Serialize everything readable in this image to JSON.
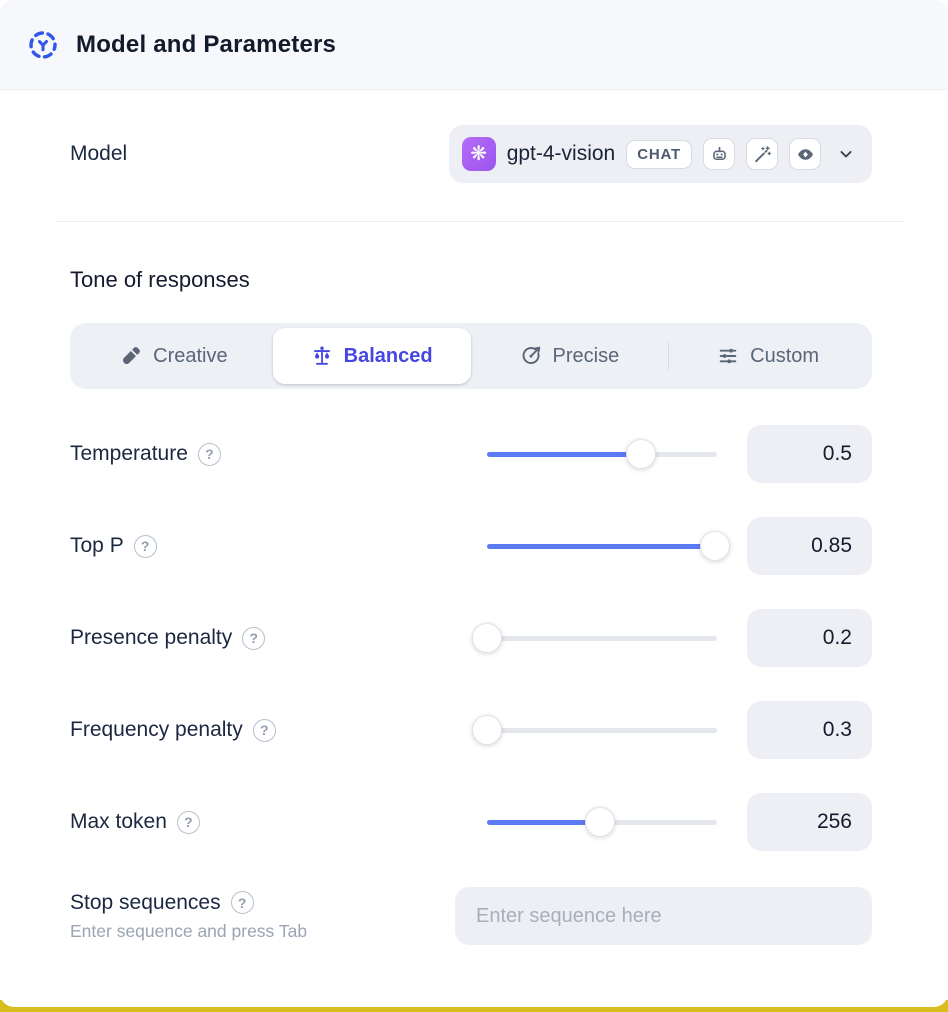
{
  "header": {
    "title": "Model and Parameters",
    "icon": "model-hub-icon"
  },
  "model": {
    "label": "Model",
    "selected": "gpt-4-vision",
    "badge": "CHAT",
    "logo_icon": "openai-logo",
    "logo_glyph": "❋",
    "capability_icons": [
      "robot-icon",
      "magic-wand-icon",
      "vision-eye-icon"
    ]
  },
  "tone": {
    "heading": "Tone of responses",
    "tabs": [
      {
        "label": "Creative",
        "icon": "paintbrush-icon",
        "selected": false
      },
      {
        "label": "Balanced",
        "icon": "balance-scale-icon",
        "selected": true
      },
      {
        "label": "Precise",
        "icon": "target-arrow-icon",
        "selected": false
      },
      {
        "label": "Custom",
        "icon": "sliders-icon",
        "selected": false
      }
    ]
  },
  "parameters": [
    {
      "label": "Temperature",
      "value": "0.5",
      "slider_fill_pct": 67
    },
    {
      "label": "Top P",
      "value": "0.85",
      "slider_fill_pct": 99
    },
    {
      "label": "Presence penalty",
      "value": "0.2",
      "slider_fill_pct": 0
    },
    {
      "label": "Frequency penalty",
      "value": "0.3",
      "slider_fill_pct": 0
    },
    {
      "label": "Max token",
      "value": "256",
      "slider_fill_pct": 49
    }
  ],
  "stop_sequences": {
    "label": "Stop sequences",
    "hint": "Enter sequence and press Tab",
    "placeholder": "Enter sequence here"
  },
  "ui": {
    "help_glyph": "?"
  },
  "colors": {
    "accent_indigo": "#4647e2",
    "slider_blue": "#5b7bf3",
    "logo_purple": "#a55ff3",
    "header_icon_blue": "#3157e9",
    "field_gray": "#edeff4",
    "bottom_strip_yellow": "#d8bd1f"
  }
}
